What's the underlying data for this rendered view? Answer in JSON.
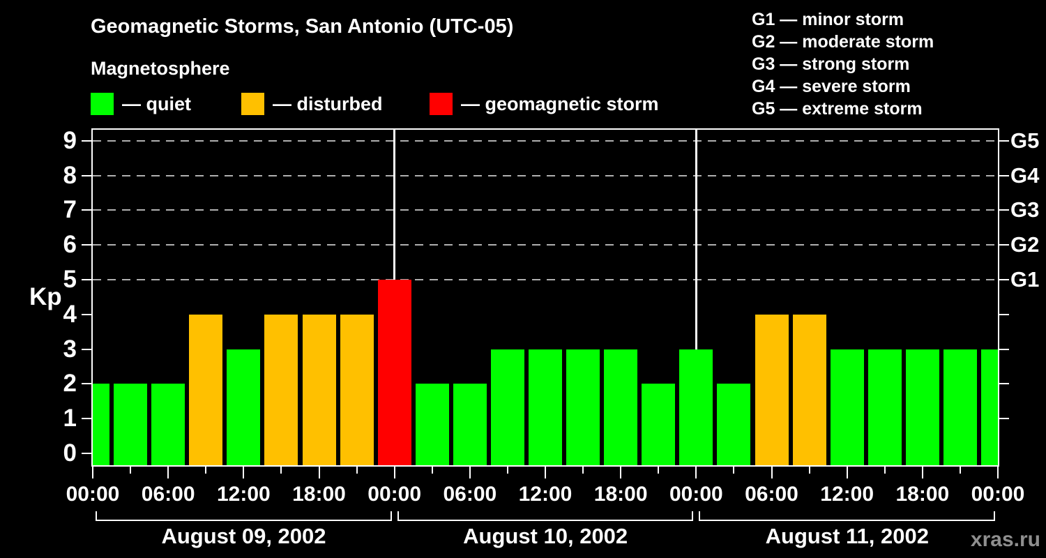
{
  "header": {
    "title": "Geomagnetic Storms, San Antonio (UTC-05)",
    "subtitle": "Magnetosphere"
  },
  "legend": {
    "items": [
      {
        "key": "quiet",
        "label": "— quiet",
        "color": "#00ff00"
      },
      {
        "key": "disturbed",
        "label": "— disturbed",
        "color": "#ffc000"
      },
      {
        "key": "storm",
        "label": "— geomagnetic storm",
        "color": "#ff0000"
      }
    ]
  },
  "g_scale": {
    "lines": [
      "G1 — minor storm",
      "G2 — moderate storm",
      "G3 — strong storm",
      "G4 — severe storm",
      "G5 — extreme storm"
    ]
  },
  "chart_data": {
    "type": "bar",
    "title": "Geomagnetic Storms, San Antonio (UTC-05)",
    "subtitle": "Magnetosphere",
    "ylabel": "Kp",
    "ylim": [
      0,
      9
    ],
    "y_ticks": [
      0,
      1,
      2,
      3,
      4,
      5,
      6,
      7,
      8,
      9
    ],
    "grid_levels_kp": [
      5,
      6,
      7,
      8,
      9
    ],
    "grid_style": "dashed",
    "right_axis": [
      {
        "label": "G1",
        "kp": 5
      },
      {
        "label": "G2",
        "kp": 6
      },
      {
        "label": "G3",
        "kp": 7
      },
      {
        "label": "G4",
        "kp": 8
      },
      {
        "label": "G5",
        "kp": 9
      }
    ],
    "x_unit_hours": 3,
    "x_range_hours": [
      0,
      72
    ],
    "x_tick_labels": [
      "00:00",
      "06:00",
      "12:00",
      "18:00",
      "00:00",
      "06:00",
      "12:00",
      "18:00",
      "00:00",
      "06:00",
      "12:00",
      "18:00",
      "00:00"
    ],
    "days": [
      {
        "label": "August 09, 2002",
        "start_hour": 0
      },
      {
        "label": "August 10, 2002",
        "start_hour": 24
      },
      {
        "label": "August 11, 2002",
        "start_hour": 48
      }
    ],
    "series": [
      {
        "name": "Kp index",
        "x_hours": [
          0,
          3,
          6,
          9,
          12,
          15,
          18,
          21,
          24,
          27,
          30,
          33,
          36,
          39,
          42,
          45,
          48,
          51,
          54,
          57,
          60,
          63,
          66,
          69,
          72
        ],
        "values": [
          2,
          2,
          2,
          4,
          3,
          4,
          4,
          4,
          5,
          2,
          2,
          3,
          3,
          3,
          3,
          2,
          3,
          2,
          4,
          4,
          3,
          3,
          3,
          3,
          3
        ]
      }
    ],
    "color_rules": {
      "quiet_max_kp": 3,
      "disturbed_kp": 4,
      "storm_min_kp": 5
    },
    "colors": {
      "quiet": "#00ff00",
      "disturbed": "#ffc000",
      "storm": "#ff0000",
      "grid": "#b0b0b0",
      "axis": "#ffffff",
      "background": "#000000",
      "watermark": "#8f8f8f"
    }
  },
  "footer": {
    "watermark": "xras.ru"
  }
}
